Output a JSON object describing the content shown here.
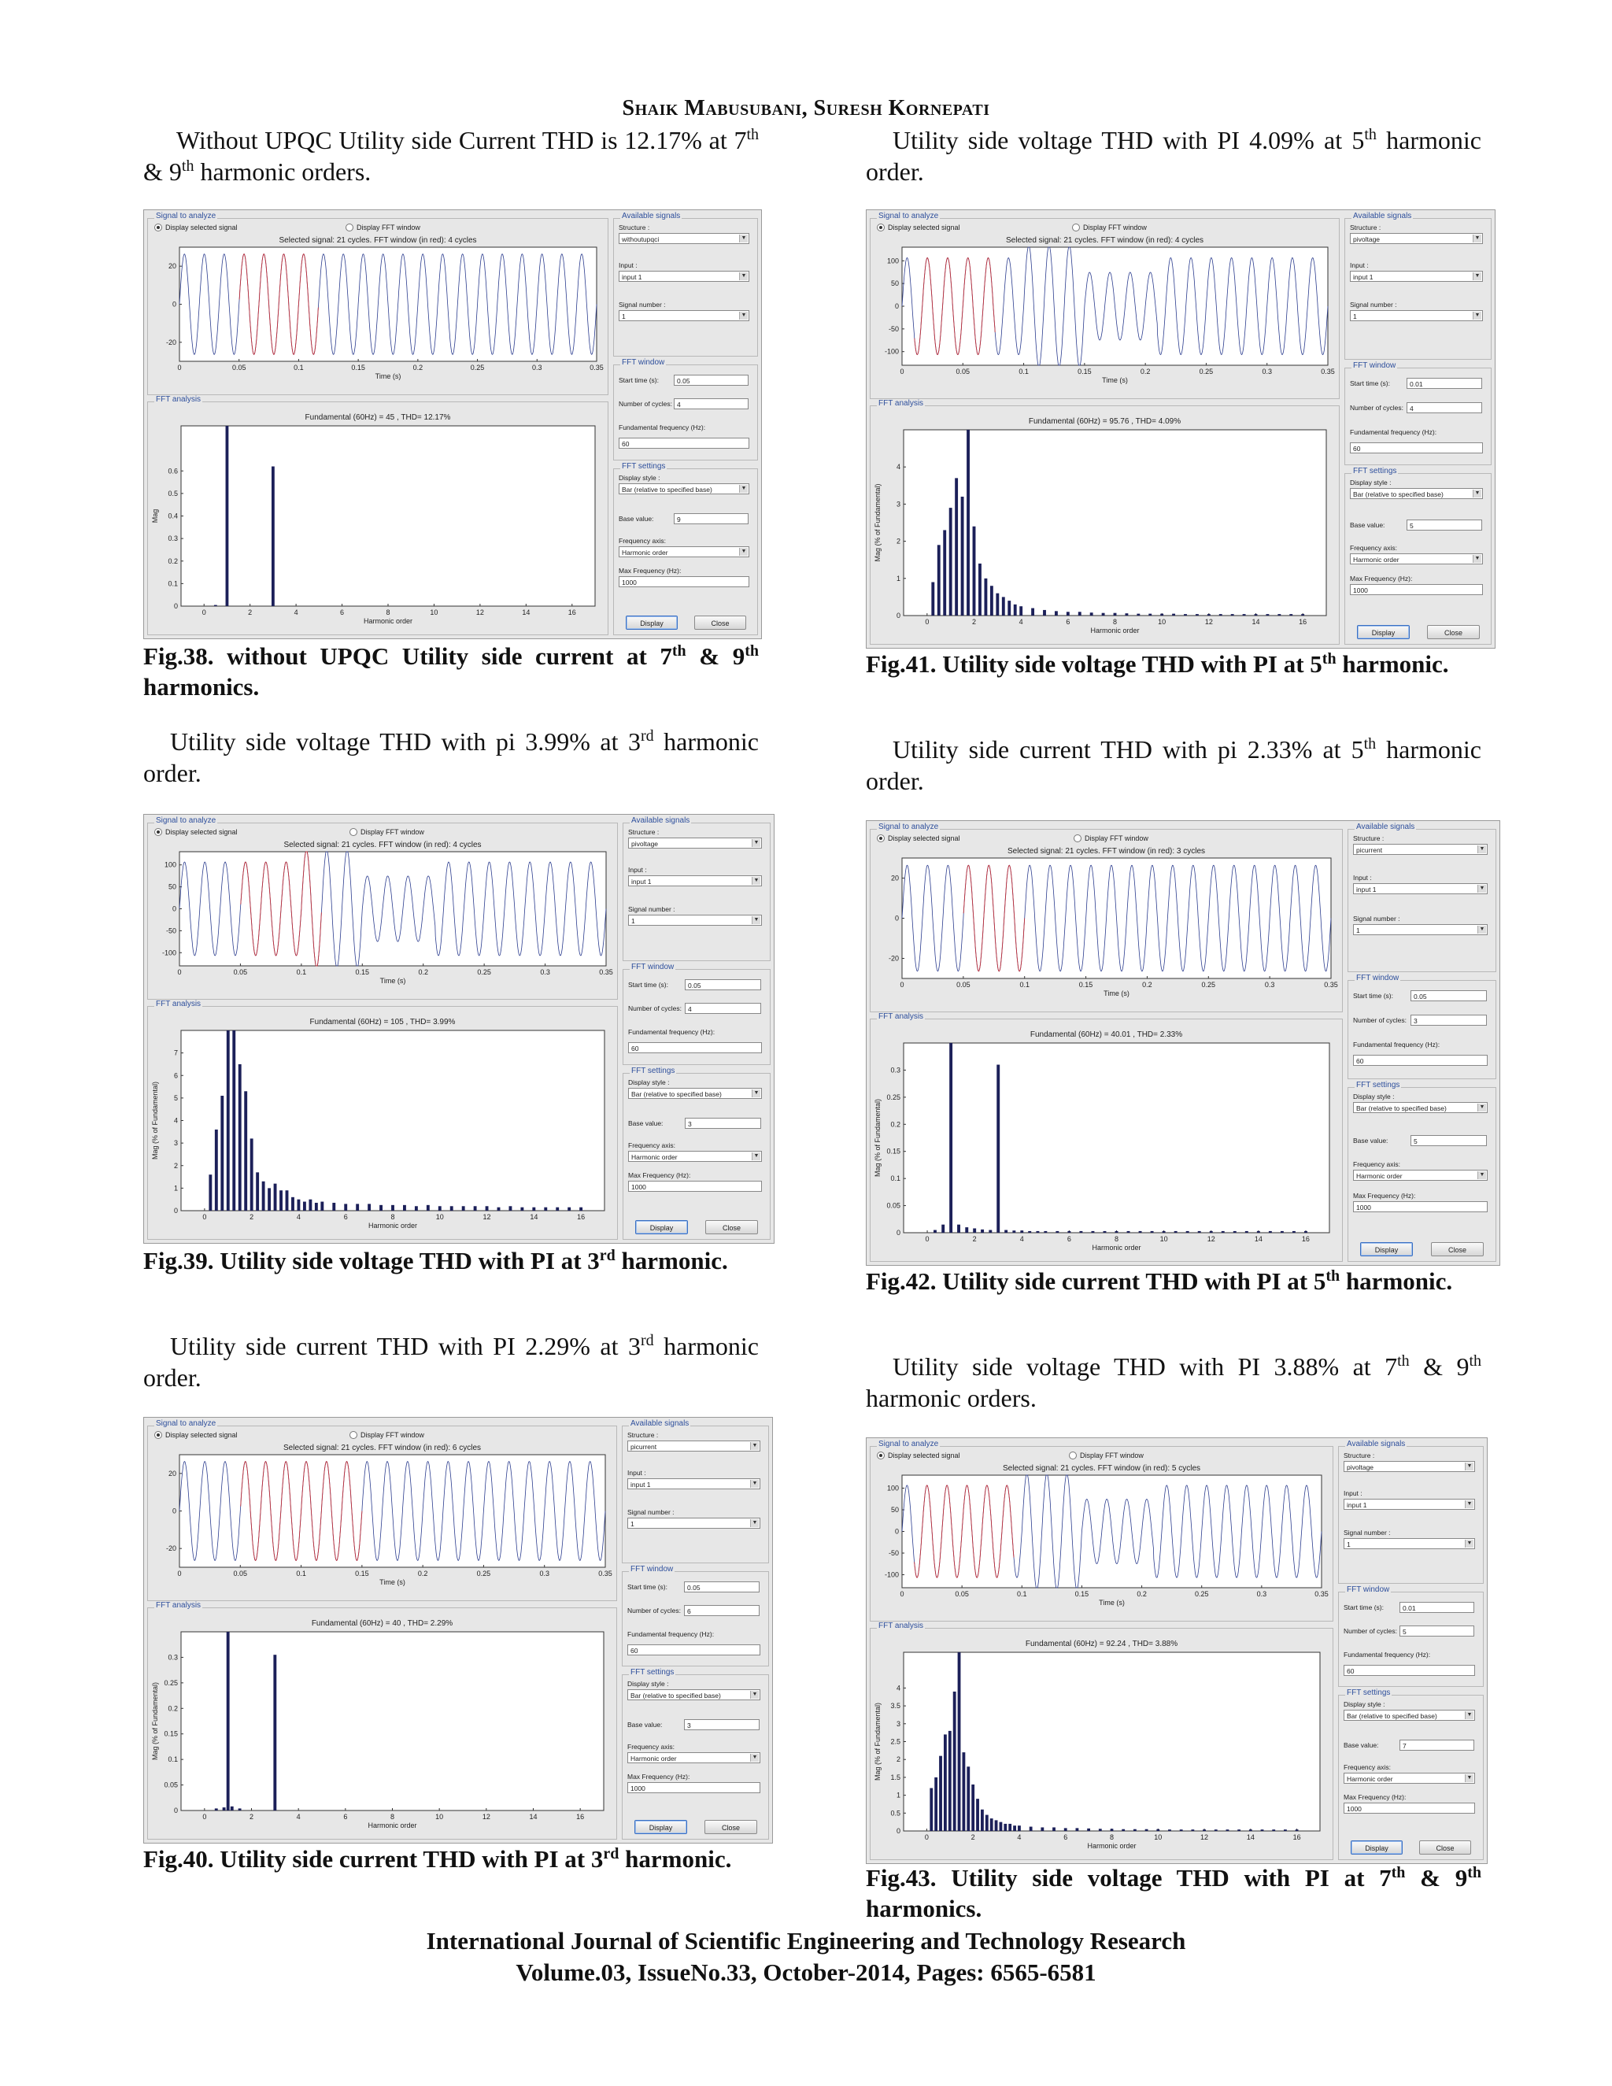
{
  "header": "Shaik Mabusubani, Suresh Kornepati",
  "footer": {
    "line1": "International Journal of Scientific Engineering and Technology Research",
    "line2": "Volume.03, IssueNo.33, October-2014, Pages: 6565-6581"
  },
  "left": {
    "p1": {
      "a": "Without UPQC Utility side Current THD is 12.17% at 7",
      "b": "th",
      "c": " & 9",
      "d": "th",
      "e": " harmonic orders."
    },
    "cap38": {
      "a": "Fig.38. without UPQC Utility side current at 7",
      "b": "th",
      "c": " & 9",
      "d": "th",
      "e": " harmonics."
    },
    "p2": {
      "a": "Utility side voltage THD with pi 3.99% at 3",
      "b": "rd",
      "c": " harmonic order."
    },
    "cap39": {
      "a": "Fig.39. Utility side voltage THD with PI at 3",
      "b": "rd",
      "c": " harmonic."
    },
    "p3": {
      "a": "Utility side current THD with PI 2.29% at 3",
      "b": "rd",
      "c": " harmonic order."
    },
    "cap40": {
      "a": "Fig.40. Utility side current THD with PI at 3",
      "b": "rd",
      "c": " harmonic."
    }
  },
  "right": {
    "p1": {
      "a": "Utility side voltage THD with PI 4.09% at 5",
      "b": "th",
      "c": " harmonic order."
    },
    "cap41": {
      "a": "Fig.41. Utility side voltage THD with PI at 5",
      "b": "th",
      "c": " harmonic."
    },
    "p2": {
      "a": "Utility side current THD with pi 2.33% at 5",
      "b": "th",
      "c": " harmonic order."
    },
    "cap42": {
      "a": "Fig.42. Utility side current THD with PI at 5",
      "b": "th",
      "c": " harmonic."
    },
    "p3": {
      "a": "Utility side voltage THD with PI 3.88% at 7",
      "b": "th",
      "c": " & 9",
      "d": "th",
      "e": " harmonic orders."
    },
    "cap43": {
      "a": "Fig.43. Utility side voltage THD with PI at 7",
      "b": "th",
      "c": " & 9",
      "d": "th",
      "e": " harmonics."
    }
  },
  "gui_labels": {
    "signal_to_analyze": "Signal to analyze",
    "display_selected_signal": "Display selected signal",
    "display_fft_window": "Display FFT window",
    "fft_analysis": "FFT analysis",
    "available_signals": "Available signals",
    "structure": "Structure :",
    "input": "Input :",
    "signal_number": "Signal number :",
    "fft_window": "FFT window",
    "start_time": "Start time (s):",
    "number_of_cycles": "Number of cycles:",
    "fundamental_frequency": "Fundamental frequency (Hz):",
    "fft_settings": "FFT settings",
    "display_style": "Display style :",
    "base_value": "Base value:",
    "frequency_axis": "Frequency axis:",
    "max_frequency": "Max Frequency (Hz):",
    "display_button": "Display",
    "close_button": "Close",
    "time_axis": "Time (s)",
    "harmonic_order": "Harmonic order",
    "display_style_value": "Bar (relative to specified base)",
    "frequency_axis_value": "Harmonic order",
    "input_value": "input 1",
    "signal_number_value": "1",
    "fundamental_frequency_value": "60",
    "max_frequency_value": "1000"
  },
  "chart_data": [
    {
      "type": "bar",
      "figure": "Fig.38",
      "selected_signal": "Selected signal: 21 cycles. FFT window (in red): 4 cycles",
      "fft_title": "Fundamental (60Hz) = 45 , THD= 12.17%",
      "structure": "withoutupqci",
      "start_time": "0.05",
      "cycles": "4",
      "base_value": "9",
      "ylabel": "Mag",
      "ylim": [
        0,
        0.8
      ],
      "yticks": [
        "0",
        "0.1",
        "0.2",
        "0.3",
        "0.4",
        "0.5",
        "0.6"
      ],
      "wave_ylim": [
        -30,
        30
      ],
      "wave_yticks": [
        "20",
        "0",
        "-20"
      ],
      "wave_kind": "current",
      "x": [
        0.5,
        1,
        3
      ],
      "values": [
        0.005,
        0.8,
        0.62
      ]
    },
    {
      "type": "bar",
      "figure": "Fig.39",
      "selected_signal": "Selected signal: 21 cycles. FFT window (in red): 4 cycles",
      "fft_title": "Fundamental (60Hz) = 105 , THD= 3.99%",
      "structure": "pivoltage",
      "start_time": "0.05",
      "cycles": "4",
      "base_value": "3",
      "ylabel": "Mag (% of Fundamental)",
      "ylim": [
        0,
        8
      ],
      "yticks": [
        "0",
        "1",
        "2",
        "3",
        "4",
        "5",
        "6",
        "7"
      ],
      "wave_ylim": [
        -130,
        130
      ],
      "wave_yticks": [
        "100",
        "50",
        "0",
        "-50",
        "-100"
      ],
      "wave_kind": "voltage",
      "x": [
        0.25,
        0.5,
        0.75,
        1,
        1.25,
        1.5,
        1.75,
        2,
        2.25,
        2.5,
        2.75,
        3,
        3.25,
        3.5,
        3.75,
        4,
        4.25,
        4.5,
        4.75,
        5,
        5.5,
        6,
        6.5,
        7,
        7.5,
        8,
        8.5,
        9,
        9.5,
        10,
        10.5,
        11,
        11.5,
        12,
        12.5,
        13,
        13.5,
        14,
        14.5,
        15,
        15.5,
        16
      ],
      "values": [
        1.6,
        3.6,
        5.1,
        8,
        8,
        6.5,
        5.3,
        3.2,
        1.7,
        1.3,
        1.0,
        1.2,
        0.9,
        0.9,
        0.6,
        0.5,
        0.4,
        0.5,
        0.35,
        0.4,
        0.35,
        0.3,
        0.3,
        0.3,
        0.25,
        0.25,
        0.25,
        0.2,
        0.25,
        0.2,
        0.2,
        0.2,
        0.2,
        0.2,
        0.15,
        0.2,
        0.15,
        0.15,
        0.15,
        0.15,
        0.15,
        0.15
      ]
    },
    {
      "type": "bar",
      "figure": "Fig.40",
      "selected_signal": "Selected signal: 21 cycles. FFT window (in red): 6 cycles",
      "fft_title": "Fundamental (60Hz) = 40 , THD= 2.29%",
      "structure": "picurrent",
      "start_time": "0.05",
      "cycles": "6",
      "base_value": "3",
      "ylabel": "Mag (% of Fundamental)",
      "ylim": [
        0,
        0.35
      ],
      "yticks": [
        "0",
        "0.05",
        "0.1",
        "0.15",
        "0.2",
        "0.25",
        "0.3"
      ],
      "wave_ylim": [
        -30,
        30
      ],
      "wave_yticks": [
        "20",
        "0",
        "-20"
      ],
      "wave_kind": "current",
      "x": [
        0.5,
        0.83,
        1,
        1.17,
        1.5,
        3
      ],
      "values": [
        0.004,
        0.006,
        0.35,
        0.008,
        0.004,
        0.305
      ]
    },
    {
      "type": "bar",
      "figure": "Fig.41",
      "selected_signal": "Selected signal: 21 cycles. FFT window (in red): 4 cycles",
      "fft_title": "Fundamental (60Hz) = 95.76 , THD= 4.09%",
      "structure": "pivoltage",
      "start_time": "0.01",
      "cycles": "4",
      "base_value": "5",
      "ylabel": "Mag (% of Fundamental)",
      "ylim": [
        0,
        5
      ],
      "yticks": [
        "0",
        "1",
        "2",
        "3",
        "4"
      ],
      "wave_ylim": [
        -130,
        130
      ],
      "wave_yticks": [
        "100",
        "50",
        "0",
        "-50",
        "-100"
      ],
      "wave_kind": "voltage",
      "x": [
        0.25,
        0.5,
        0.75,
        1,
        1.25,
        1.5,
        1.75,
        2,
        2.25,
        2.5,
        2.75,
        3,
        3.25,
        3.5,
        3.75,
        4,
        4.5,
        5,
        5.5,
        6,
        6.5,
        7,
        7.5,
        8,
        8.5,
        9,
        9.5,
        10,
        10.5,
        11,
        11.5,
        12,
        12.5,
        13,
        13.5,
        14,
        14.5,
        15,
        15.5,
        16
      ],
      "values": [
        0.9,
        1.9,
        2.3,
        2.9,
        3.7,
        3.2,
        5,
        2.4,
        1.4,
        1.0,
        0.8,
        0.6,
        0.5,
        0.4,
        0.3,
        0.25,
        0.2,
        0.15,
        0.12,
        0.1,
        0.1,
        0.08,
        0.07,
        0.07,
        0.06,
        0.05,
        0.05,
        0.05,
        0.05,
        0.04,
        0.04,
        0.04,
        0.04,
        0.04,
        0.04,
        0.04,
        0.04,
        0.04,
        0.04,
        0.04
      ]
    },
    {
      "type": "bar",
      "figure": "Fig.42",
      "selected_signal": "Selected signal: 21 cycles. FFT window (in red): 3 cycles",
      "fft_title": "Fundamental (60Hz) = 40.01 , THD= 2.33%",
      "structure": "picurrent",
      "start_time": "0.05",
      "cycles": "3",
      "base_value": "5",
      "ylabel": "Mag (% of Fundamental)",
      "ylim": [
        0,
        0.35
      ],
      "yticks": [
        "0",
        "0.05",
        "0.1",
        "0.15",
        "0.2",
        "0.25",
        "0.3"
      ],
      "wave_ylim": [
        -30,
        30
      ],
      "wave_yticks": [
        "20",
        "0",
        "-20"
      ],
      "wave_kind": "current",
      "x": [
        0.33,
        0.67,
        1,
        1.33,
        1.67,
        2,
        2.33,
        2.67,
        3,
        3.33,
        3.67,
        4,
        4.33,
        4.67,
        5,
        5.5,
        6,
        6.5,
        7,
        7.5,
        8,
        8.5,
        9,
        9.5,
        10,
        10.5,
        11,
        11.5,
        12,
        12.5,
        13,
        13.5,
        14,
        14.5,
        15,
        15.5,
        16
      ],
      "values": [
        0.005,
        0.015,
        0.35,
        0.015,
        0.01,
        0.008,
        0.006,
        0.005,
        0.31,
        0.005,
        0.004,
        0.004,
        0.003,
        0.003,
        0.003,
        0.003,
        0.003,
        0.003,
        0.003,
        0.003,
        0.003,
        0.003,
        0.003,
        0.003,
        0.003,
        0.003,
        0.003,
        0.003,
        0.003,
        0.003,
        0.003,
        0.003,
        0.003,
        0.003,
        0.003,
        0.003,
        0.003
      ]
    },
    {
      "type": "bar",
      "figure": "Fig.43",
      "selected_signal": "Selected signal: 21 cycles. FFT window (in red): 5 cycles",
      "fft_title": "Fundamental (60Hz) = 92.24 , THD= 3.88%",
      "structure": "pivoltage",
      "start_time": "0.01",
      "cycles": "5",
      "base_value": "7",
      "ylabel": "Mag (% of Fundamental)",
      "ylim": [
        0,
        5
      ],
      "yticks": [
        "0",
        "0.5",
        "1",
        "1.5",
        "2",
        "2.5",
        "3",
        "3.5",
        "4"
      ],
      "wave_ylim": [
        -130,
        130
      ],
      "wave_yticks": [
        "100",
        "50",
        "0",
        "-50",
        "-100"
      ],
      "wave_kind": "voltage",
      "x": [
        0.2,
        0.4,
        0.6,
        0.8,
        1,
        1.2,
        1.4,
        1.6,
        1.8,
        2,
        2.2,
        2.4,
        2.6,
        2.8,
        3,
        3.2,
        3.4,
        3.6,
        3.8,
        4,
        4.5,
        5,
        5.5,
        6,
        6.5,
        7,
        7.5,
        8,
        8.5,
        9,
        9.5,
        10,
        10.5,
        11,
        11.5,
        12,
        12.5,
        13,
        13.5,
        14,
        14.5,
        15,
        15.5,
        16
      ],
      "values": [
        1.2,
        1.5,
        2.1,
        2.7,
        2.8,
        3.9,
        5,
        2.2,
        1.8,
        1.3,
        0.9,
        0.6,
        0.45,
        0.35,
        0.3,
        0.25,
        0.2,
        0.2,
        0.15,
        0.15,
        0.12,
        0.1,
        0.1,
        0.08,
        0.08,
        0.07,
        0.06,
        0.06,
        0.05,
        0.05,
        0.05,
        0.05,
        0.04,
        0.04,
        0.04,
        0.04,
        0.04,
        0.04,
        0.04,
        0.04,
        0.04,
        0.04,
        0.04,
        0.04
      ]
    }
  ]
}
